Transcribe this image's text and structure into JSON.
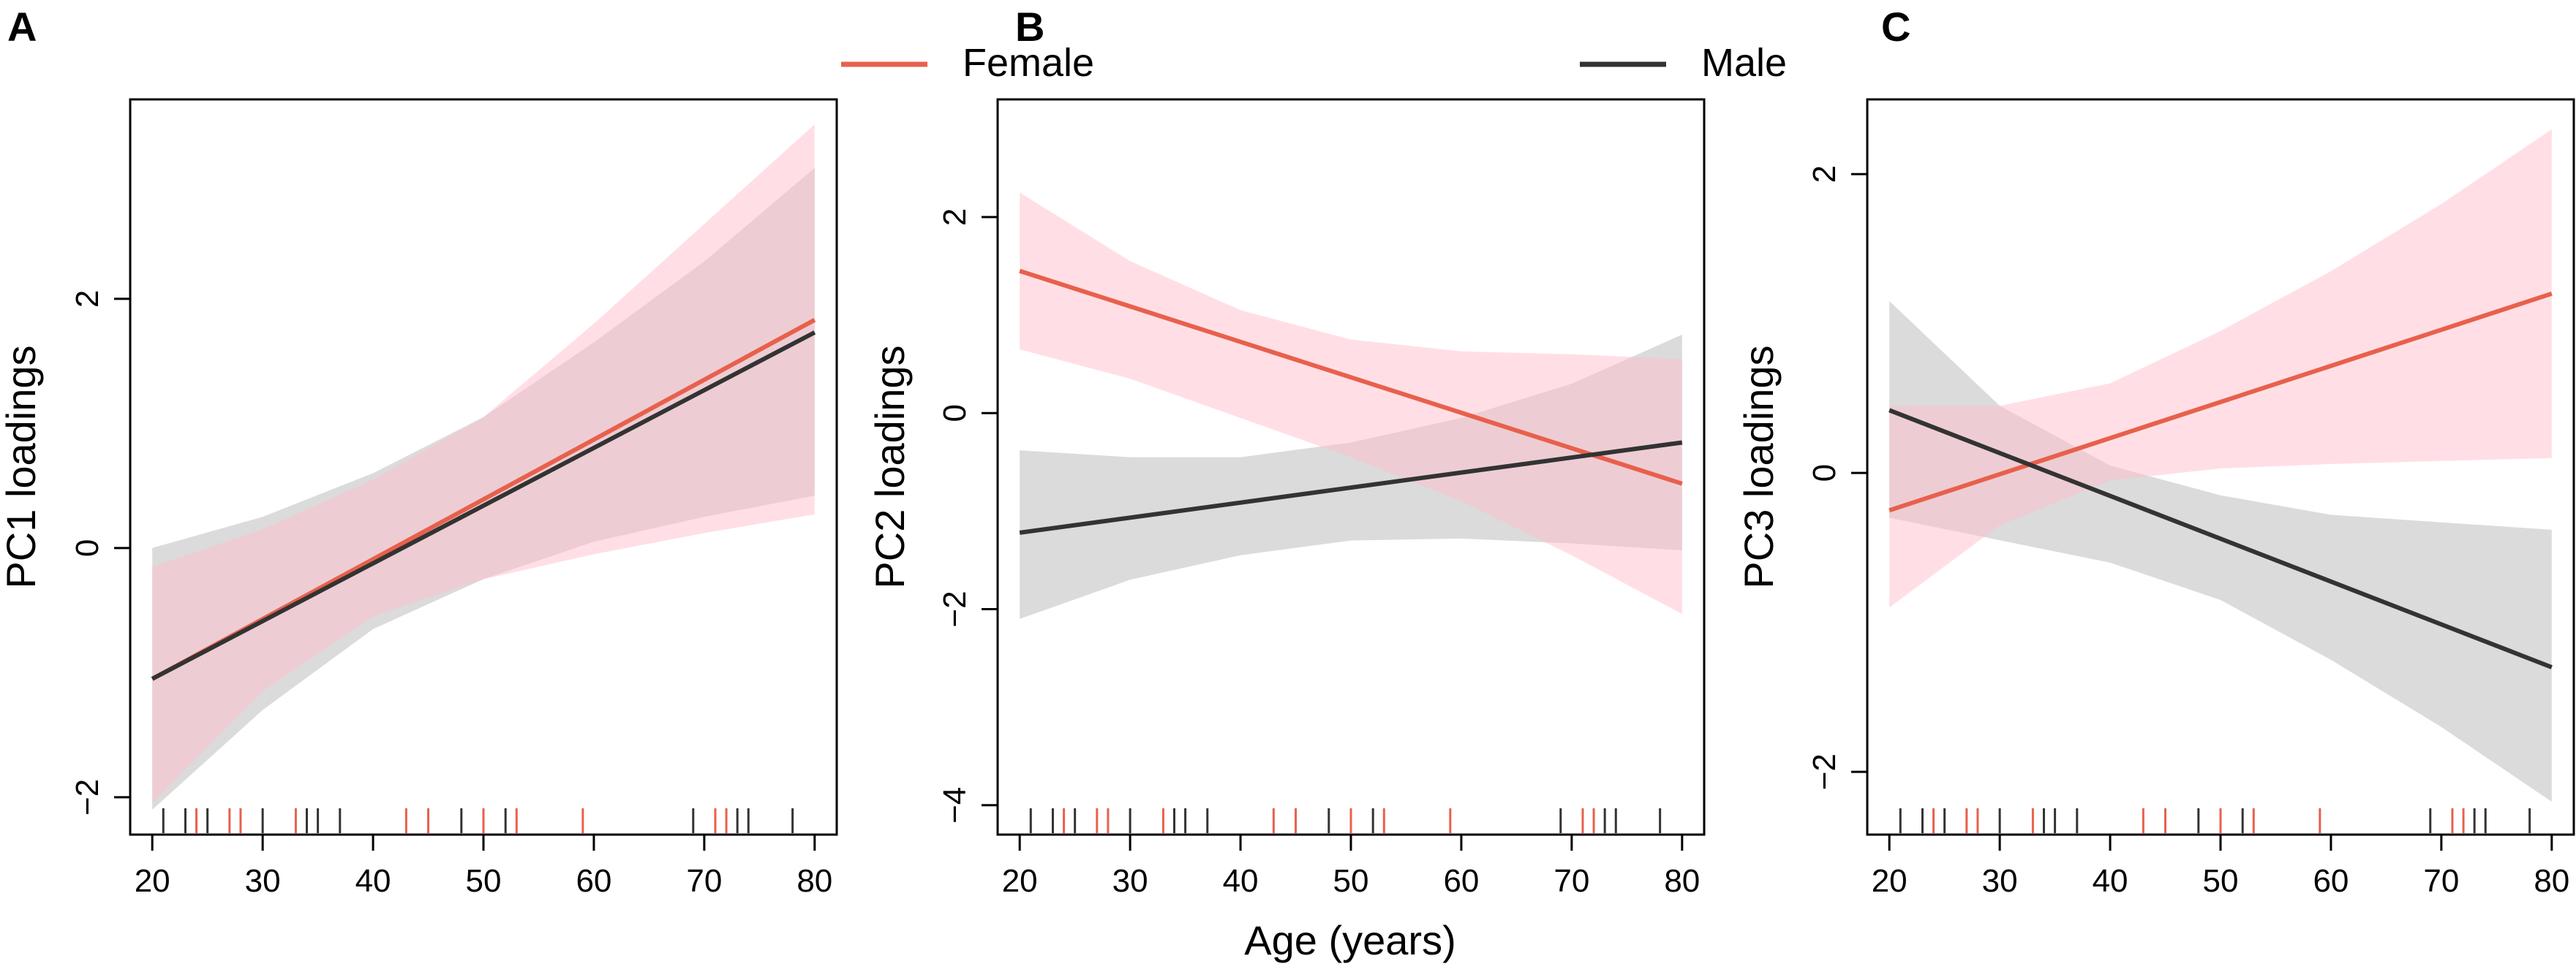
{
  "figure": {
    "shared_xlabel": "Age (years)",
    "legend": [
      {
        "name": "Female",
        "color": "#e8604c"
      },
      {
        "name": "Male",
        "color": "#333333"
      }
    ],
    "ci_colors": {
      "Female": "#ffc0cb",
      "Male": "#bebebe"
    }
  },
  "chart_data": [
    {
      "type": "line",
      "panel_letter": "A",
      "ylabel": "PC1 loadings",
      "xlim": [
        18,
        82
      ],
      "ylim": [
        -2.3,
        3.6
      ],
      "xticks": [
        20,
        30,
        40,
        50,
        60,
        70,
        80
      ],
      "yticks": [
        -2,
        0,
        2
      ],
      "series": [
        {
          "name": "Female",
          "x": [
            20,
            80
          ],
          "y": [
            -1.05,
            1.83
          ],
          "ci_x": [
            20,
            30,
            40,
            50,
            60,
            70,
            80
          ],
          "ci_lower": [
            -2.05,
            -1.15,
            -0.55,
            -0.25,
            -0.05,
            0.12,
            0.27
          ],
          "ci_upper": [
            -0.15,
            0.15,
            0.55,
            1.05,
            1.8,
            2.6,
            3.4
          ]
        },
        {
          "name": "Male",
          "x": [
            20,
            80
          ],
          "y": [
            -1.05,
            1.73
          ],
          "ci_x": [
            20,
            30,
            40,
            50,
            60,
            70,
            80
          ],
          "ci_lower": [
            -2.1,
            -1.3,
            -0.65,
            -0.25,
            0.05,
            0.25,
            0.42
          ],
          "ci_upper": [
            0.0,
            0.25,
            0.6,
            1.05,
            1.65,
            2.3,
            3.05
          ]
        }
      ],
      "rug": {
        "Female": [
          24,
          27,
          28,
          33,
          43,
          45,
          50,
          53,
          59,
          71,
          72
        ],
        "Male": [
          21,
          23,
          25,
          30,
          34,
          35,
          37,
          48,
          52,
          69,
          73,
          74,
          78
        ]
      }
    },
    {
      "type": "line",
      "panel_letter": "B",
      "ylabel": "PC2 loadings",
      "xlim": [
        18,
        82
      ],
      "ylim": [
        -4.3,
        3.2
      ],
      "xticks": [
        20,
        30,
        40,
        50,
        60,
        70,
        80
      ],
      "yticks": [
        -4,
        -2,
        0,
        2
      ],
      "series": [
        {
          "name": "Female",
          "x": [
            20,
            80
          ],
          "y": [
            1.45,
            -0.72
          ],
          "ci_x": [
            20,
            30,
            40,
            50,
            60,
            70,
            80
          ],
          "ci_lower": [
            0.65,
            0.35,
            -0.05,
            -0.45,
            -0.9,
            -1.45,
            -2.05
          ],
          "ci_upper": [
            2.25,
            1.55,
            1.05,
            0.75,
            0.63,
            0.6,
            0.55
          ]
        },
        {
          "name": "Male",
          "x": [
            20,
            80
          ],
          "y": [
            -1.22,
            -0.3
          ],
          "ci_x": [
            20,
            30,
            40,
            50,
            60,
            70,
            80
          ],
          "ci_lower": [
            -2.1,
            -1.7,
            -1.45,
            -1.3,
            -1.28,
            -1.33,
            -1.4
          ],
          "ci_upper": [
            -0.38,
            -0.45,
            -0.45,
            -0.3,
            -0.05,
            0.3,
            0.8
          ]
        }
      ],
      "rug": {
        "Female": [
          24,
          27,
          28,
          33,
          43,
          45,
          50,
          53,
          59,
          71,
          72
        ],
        "Male": [
          21,
          23,
          25,
          30,
          34,
          35,
          37,
          48,
          52,
          69,
          73,
          74,
          78
        ]
      }
    },
    {
      "type": "line",
      "panel_letter": "C",
      "ylabel": "PC3 loadings",
      "xlim": [
        18,
        82
      ],
      "ylim": [
        -2.42,
        2.5
      ],
      "xticks": [
        20,
        30,
        40,
        50,
        60,
        70,
        80
      ],
      "yticks": [
        -2,
        0,
        2
      ],
      "series": [
        {
          "name": "Female",
          "x": [
            20,
            80
          ],
          "y": [
            -0.25,
            1.2
          ],
          "ci_x": [
            20,
            30,
            40,
            50,
            60,
            70,
            80
          ],
          "ci_lower": [
            -0.9,
            -0.35,
            -0.05,
            0.03,
            0.06,
            0.08,
            0.1
          ],
          "ci_upper": [
            0.45,
            0.45,
            0.6,
            0.95,
            1.35,
            1.8,
            2.3
          ]
        },
        {
          "name": "Male",
          "x": [
            20,
            80
          ],
          "y": [
            0.42,
            -1.3
          ],
          "ci_x": [
            20,
            30,
            40,
            50,
            60,
            70,
            80
          ],
          "ci_lower": [
            -0.3,
            -0.45,
            -0.6,
            -0.85,
            -1.25,
            -1.7,
            -2.2
          ],
          "ci_upper": [
            1.15,
            0.45,
            0.05,
            -0.15,
            -0.28,
            -0.33,
            -0.38
          ]
        }
      ],
      "rug": {
        "Female": [
          24,
          27,
          28,
          33,
          43,
          45,
          50,
          53,
          59,
          71,
          72
        ],
        "Male": [
          21,
          23,
          25,
          30,
          34,
          35,
          37,
          48,
          52,
          69,
          73,
          74,
          78
        ]
      }
    }
  ]
}
